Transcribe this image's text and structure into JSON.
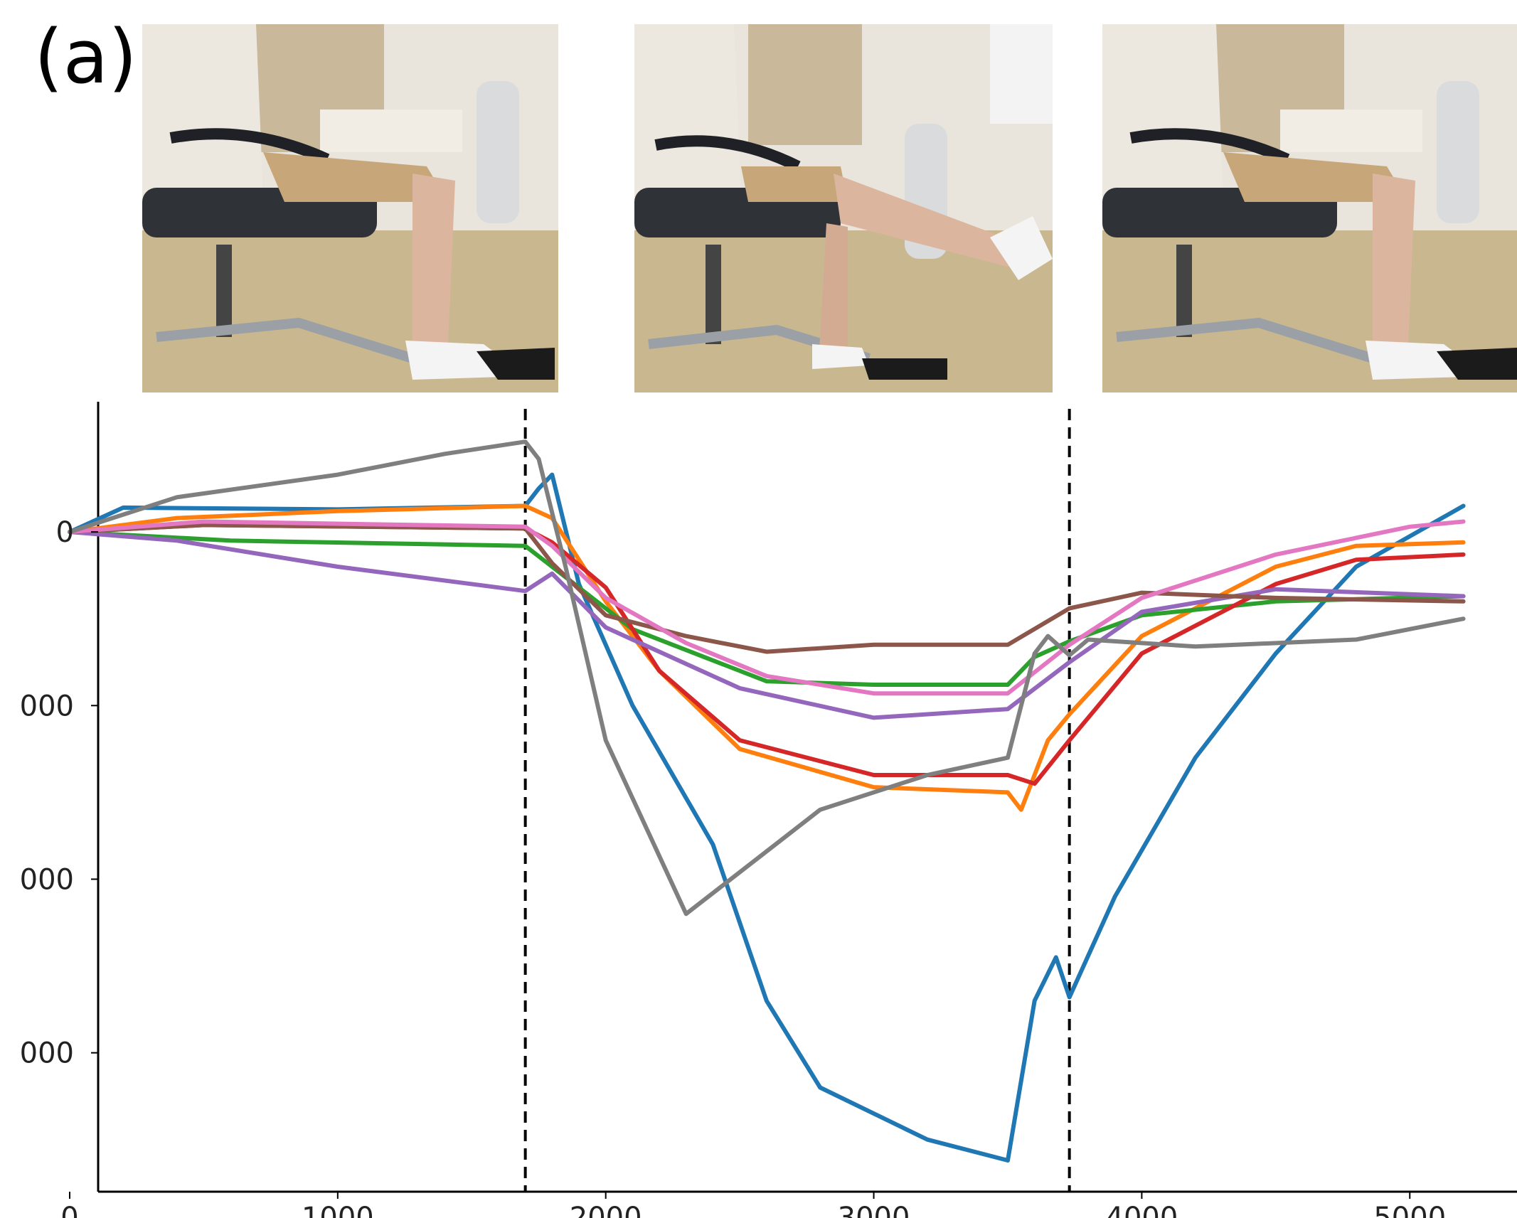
{
  "figure": {
    "panel_label": "(a)",
    "photos": [
      {
        "name": "photo-seated-leg-bent",
        "pose": "seated, knee bent"
      },
      {
        "name": "photo-seated-leg-extended",
        "pose": "seated, knee extended"
      },
      {
        "name": "photo-seated-leg-returned",
        "pose": "seated, knee bent"
      }
    ]
  },
  "chart_data": {
    "type": "line",
    "title": "",
    "xlabel": "",
    "ylabel": "",
    "xlim": [
      -260,
      5400
    ],
    "ylim": [
      -3800,
      750
    ],
    "yticks": [
      0,
      -1000,
      -2000,
      -3000
    ],
    "ytick_labels": [
      "0",
      "000",
      "000",
      "000"
    ],
    "xticks": [
      0,
      1000,
      2000,
      3000,
      4000,
      5000
    ],
    "xtick_labels": [
      "0",
      "1000",
      "2000",
      "3000",
      "4000",
      "5000"
    ],
    "grid": false,
    "legend": "none",
    "vlines": [
      1700,
      3730
    ],
    "series": [
      {
        "color": "#1f77b4",
        "points": [
          [
            0,
            0
          ],
          [
            200,
            140
          ],
          [
            1000,
            130
          ],
          [
            1700,
            150
          ],
          [
            1750,
            250
          ],
          [
            1800,
            330
          ],
          [
            1900,
            -300
          ],
          [
            2100,
            -1000
          ],
          [
            2400,
            -1800
          ],
          [
            2600,
            -2700
          ],
          [
            2800,
            -3200
          ],
          [
            3200,
            -3500
          ],
          [
            3500,
            -3620
          ],
          [
            3600,
            -2700
          ],
          [
            3680,
            -2450
          ],
          [
            3730,
            -2680
          ],
          [
            3900,
            -2100
          ],
          [
            4200,
            -1300
          ],
          [
            4500,
            -700
          ],
          [
            4800,
            -200
          ],
          [
            5200,
            150
          ]
        ]
      },
      {
        "color": "#ff7f0e",
        "points": [
          [
            0,
            0
          ],
          [
            400,
            80
          ],
          [
            1000,
            120
          ],
          [
            1700,
            150
          ],
          [
            1800,
            80
          ],
          [
            2000,
            -400
          ],
          [
            2200,
            -800
          ],
          [
            2500,
            -1250
          ],
          [
            3000,
            -1470
          ],
          [
            3500,
            -1500
          ],
          [
            3550,
            -1600
          ],
          [
            3650,
            -1200
          ],
          [
            3730,
            -1050
          ],
          [
            4000,
            -600
          ],
          [
            4500,
            -200
          ],
          [
            4800,
            -80
          ],
          [
            5200,
            -60
          ]
        ]
      },
      {
        "color": "#2ca02c",
        "points": [
          [
            0,
            0
          ],
          [
            600,
            -50
          ],
          [
            1700,
            -80
          ],
          [
            1800,
            -200
          ],
          [
            2100,
            -560
          ],
          [
            2600,
            -860
          ],
          [
            3000,
            -880
          ],
          [
            3500,
            -880
          ],
          [
            3600,
            -720
          ],
          [
            3730,
            -630
          ],
          [
            4000,
            -480
          ],
          [
            4500,
            -400
          ],
          [
            5200,
            -370
          ]
        ]
      },
      {
        "color": "#d62728",
        "points": [
          [
            0,
            0
          ],
          [
            500,
            40
          ],
          [
            1700,
            20
          ],
          [
            1800,
            -60
          ],
          [
            2000,
            -320
          ],
          [
            2200,
            -800
          ],
          [
            2500,
            -1200
          ],
          [
            3000,
            -1400
          ],
          [
            3500,
            -1400
          ],
          [
            3600,
            -1450
          ],
          [
            3730,
            -1200
          ],
          [
            4000,
            -700
          ],
          [
            4500,
            -300
          ],
          [
            4800,
            -160
          ],
          [
            5200,
            -130
          ]
        ]
      },
      {
        "color": "#9467bd",
        "points": [
          [
            0,
            0
          ],
          [
            400,
            -50
          ],
          [
            1000,
            -200
          ],
          [
            1700,
            -340
          ],
          [
            1800,
            -240
          ],
          [
            2000,
            -550
          ],
          [
            2500,
            -900
          ],
          [
            3000,
            -1070
          ],
          [
            3500,
            -1020
          ],
          [
            3730,
            -750
          ],
          [
            4000,
            -460
          ],
          [
            4500,
            -330
          ],
          [
            5200,
            -370
          ]
        ]
      },
      {
        "color": "#8c564b",
        "points": [
          [
            0,
            0
          ],
          [
            500,
            40
          ],
          [
            1700,
            20
          ],
          [
            1800,
            -180
          ],
          [
            2000,
            -480
          ],
          [
            2300,
            -600
          ],
          [
            2600,
            -690
          ],
          [
            3000,
            -650
          ],
          [
            3500,
            -650
          ],
          [
            3730,
            -440
          ],
          [
            4000,
            -350
          ],
          [
            4500,
            -380
          ],
          [
            5200,
            -400
          ]
        ]
      },
      {
        "color": "#e377c2",
        "points": [
          [
            0,
            0
          ],
          [
            500,
            60
          ],
          [
            1700,
            30
          ],
          [
            1800,
            -80
          ],
          [
            2000,
            -380
          ],
          [
            2300,
            -640
          ],
          [
            2600,
            -830
          ],
          [
            3000,
            -930
          ],
          [
            3500,
            -930
          ],
          [
            3730,
            -650
          ],
          [
            4000,
            -380
          ],
          [
            4500,
            -130
          ],
          [
            5000,
            30
          ],
          [
            5200,
            60
          ]
        ]
      },
      {
        "color": "#7f7f7f",
        "points": [
          [
            0,
            0
          ],
          [
            400,
            200
          ],
          [
            1000,
            330
          ],
          [
            1400,
            450
          ],
          [
            1700,
            520
          ],
          [
            1750,
            420
          ],
          [
            1850,
            -200
          ],
          [
            2000,
            -1200
          ],
          [
            2300,
            -2200
          ],
          [
            2800,
            -1600
          ],
          [
            3200,
            -1400
          ],
          [
            3500,
            -1300
          ],
          [
            3600,
            -700
          ],
          [
            3650,
            -600
          ],
          [
            3730,
            -710
          ],
          [
            3800,
            -620
          ],
          [
            4200,
            -660
          ],
          [
            4800,
            -620
          ],
          [
            5200,
            -500
          ]
        ]
      }
    ]
  }
}
